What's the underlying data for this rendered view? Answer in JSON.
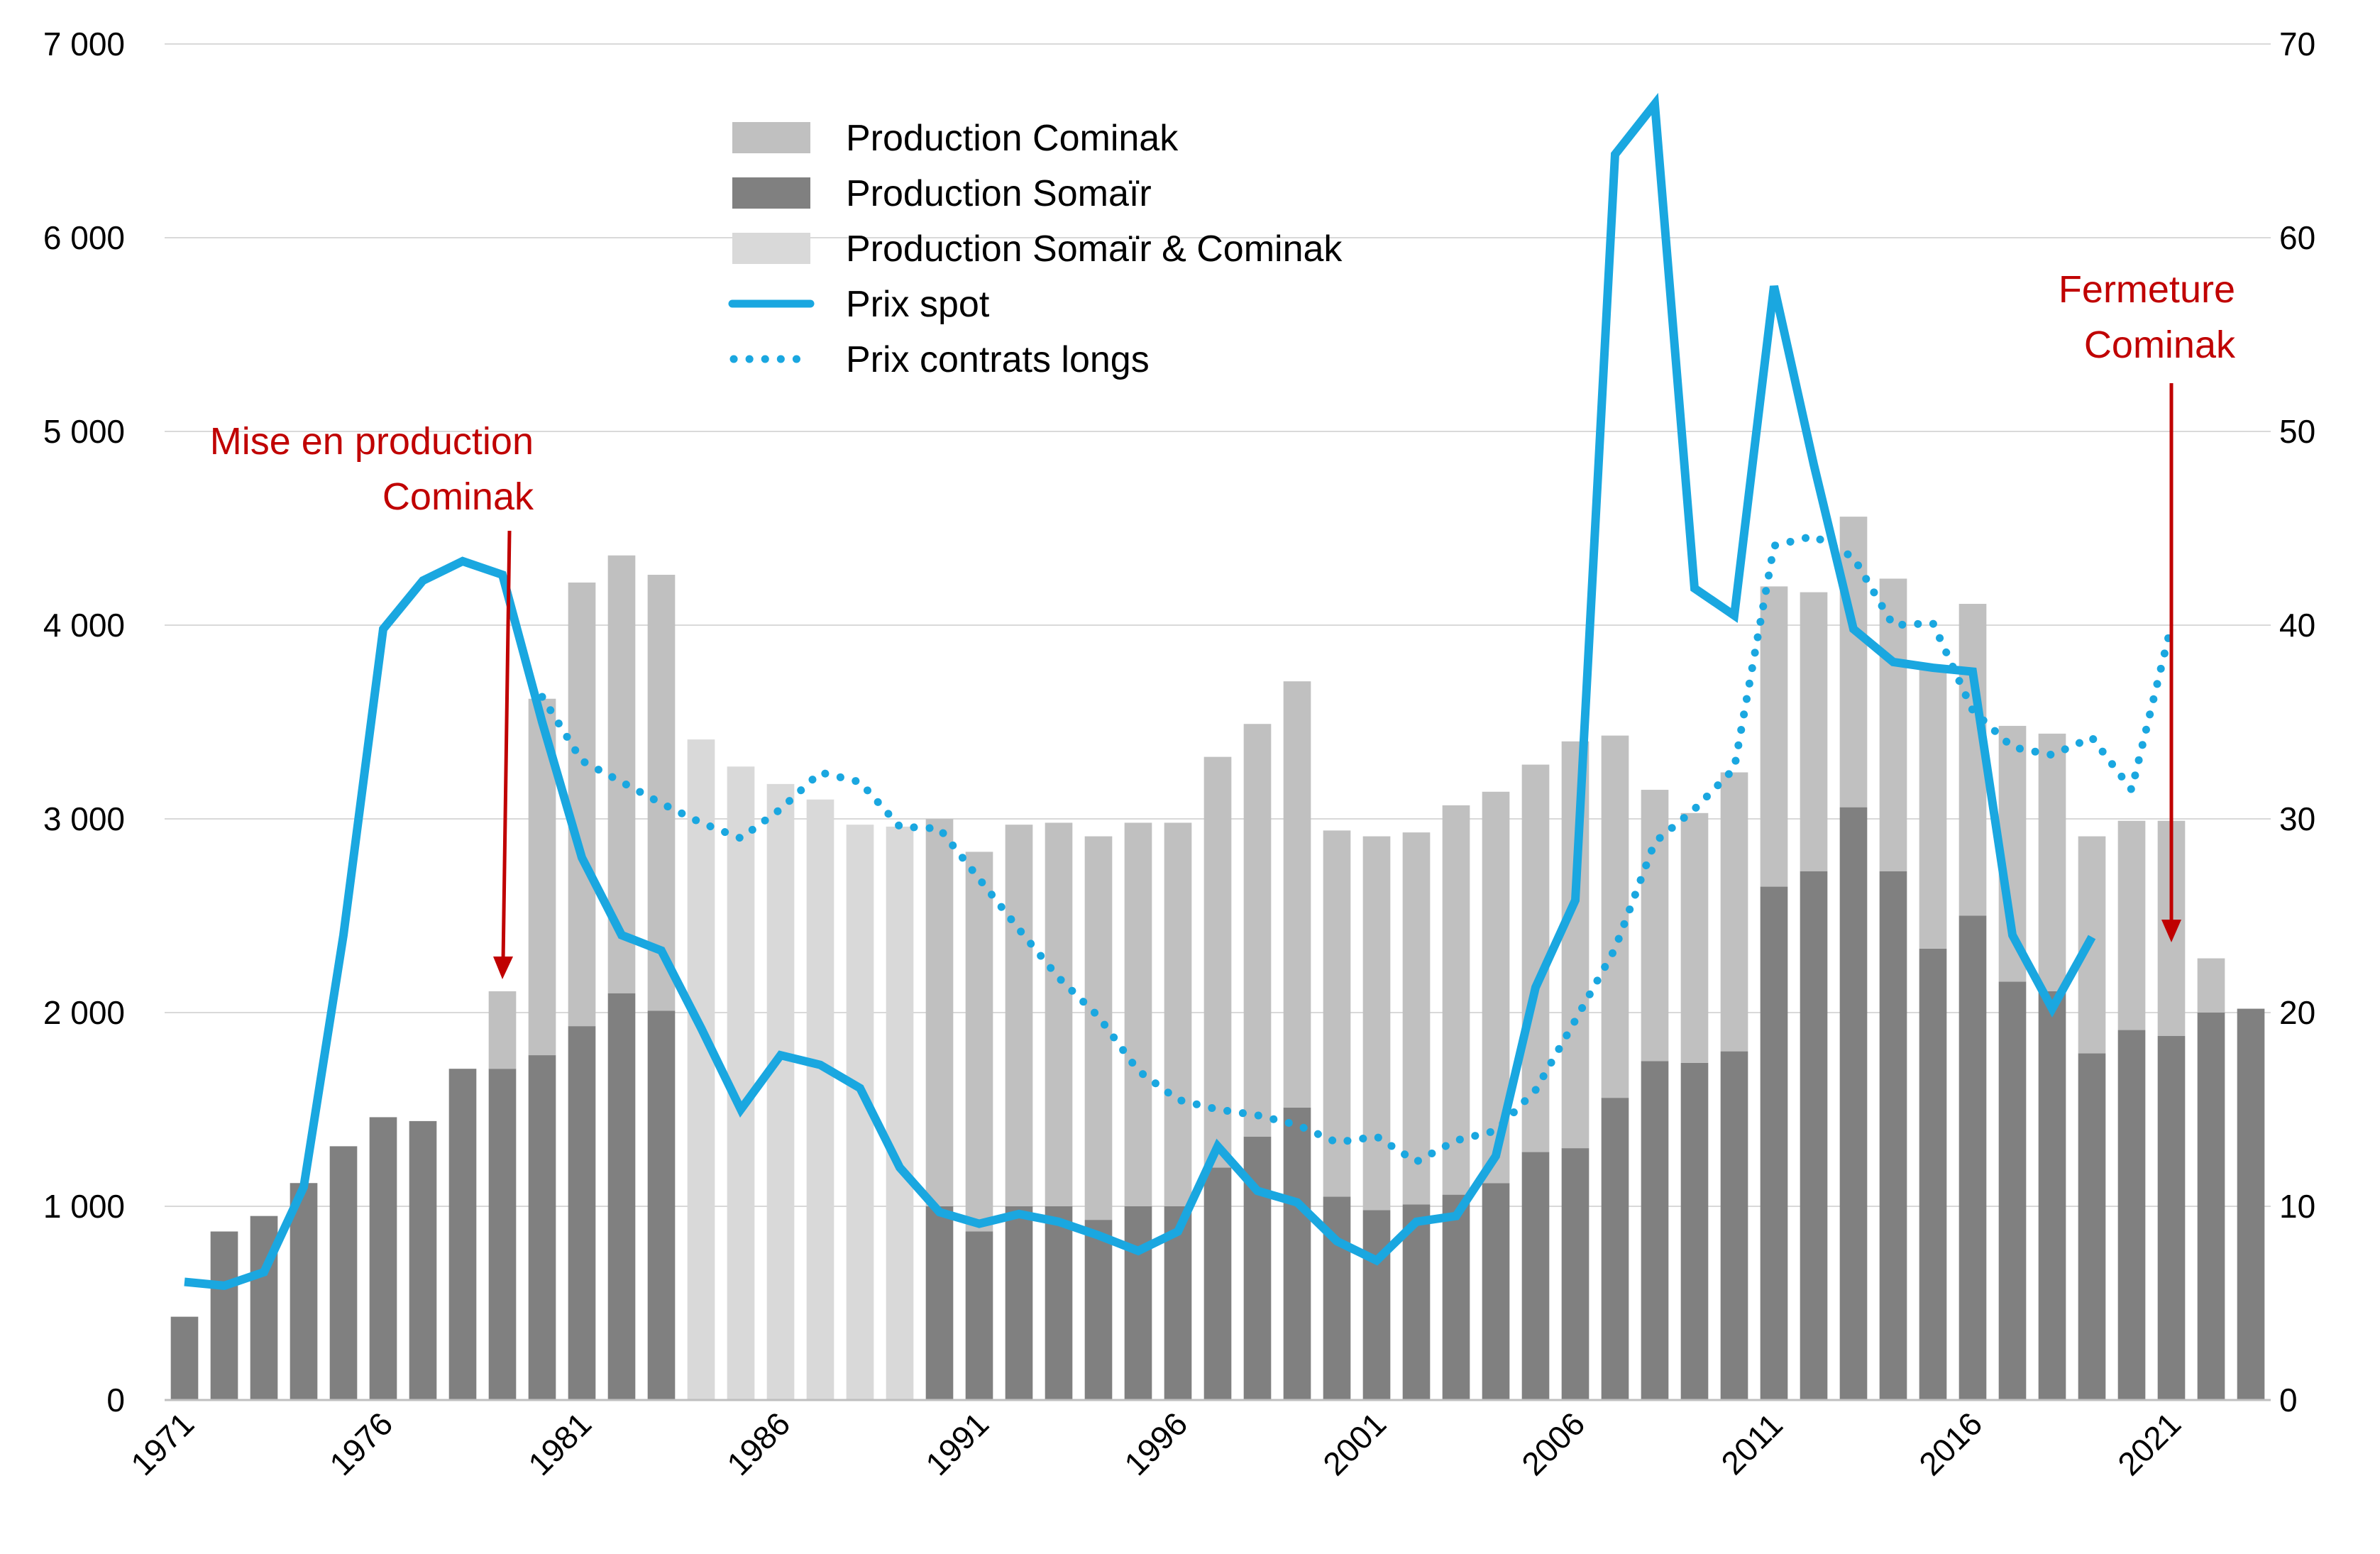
{
  "chart_data": {
    "type": "bar",
    "title": "",
    "xlabel": "",
    "ylabel": "",
    "ylabel_right": "",
    "categories": [
      "1971",
      "1972",
      "1973",
      "1974",
      "1975",
      "1976",
      "1977",
      "1978",
      "1979",
      "1980",
      "1981",
      "1982",
      "1983",
      "1984",
      "1985",
      "1986",
      "1987",
      "1988",
      "1989",
      "1990",
      "1991",
      "1992",
      "1993",
      "1994",
      "1995",
      "1996",
      "1997",
      "1998",
      "1999",
      "2000",
      "2001",
      "2002",
      "2003",
      "2004",
      "2005",
      "2006",
      "2007",
      "2008",
      "2009",
      "2010",
      "2011",
      "2012",
      "2013",
      "2014",
      "2015",
      "2016",
      "2017",
      "2018",
      "2019",
      "2020",
      "2021",
      "2022",
      "2023"
    ],
    "x_tick_labels": [
      "1971",
      "1976",
      "1981",
      "1986",
      "1991",
      "1996",
      "2001",
      "2006",
      "2011",
      "2016",
      "2021"
    ],
    "ylim": [
      0,
      7000
    ],
    "y_ticks": [
      "0",
      "1 000",
      "2 000",
      "3 000",
      "4 000",
      "5 000",
      "6 000",
      "7 000"
    ],
    "ylim_right": [
      0,
      70
    ],
    "y_ticks_right": [
      "0",
      "10",
      "20",
      "30",
      "40",
      "50",
      "60",
      "70"
    ],
    "grid": "horizontal",
    "legend_position": "top-center",
    "series": [
      {
        "name": "Production Cominak",
        "kind": "bar-stacked",
        "color": "#c0c0c0",
        "values": [
          null,
          null,
          null,
          null,
          null,
          null,
          null,
          null,
          400,
          1840,
          2290,
          2260,
          2250,
          null,
          null,
          null,
          null,
          null,
          null,
          2000,
          1960,
          1970,
          1980,
          1980,
          1980,
          1980,
          2120,
          2130,
          2200,
          1890,
          1930,
          1920,
          2010,
          2020,
          2000,
          2100,
          1870,
          1400,
          1290,
          1440,
          1550,
          1440,
          1500,
          1510,
          1460,
          1610,
          1320,
          1330,
          1120,
          1080,
          1110,
          280,
          null
        ]
      },
      {
        "name": "Production Somaïr",
        "kind": "bar",
        "color": "#808080",
        "values": [
          430,
          870,
          950,
          1120,
          1310,
          1460,
          1440,
          1710,
          1710,
          1780,
          1930,
          2100,
          2010,
          null,
          null,
          null,
          null,
          null,
          null,
          1000,
          870,
          1000,
          1000,
          930,
          1000,
          1000,
          1200,
          1360,
          1510,
          1050,
          980,
          1010,
          1060,
          1120,
          1280,
          1300,
          1560,
          1750,
          1740,
          1800,
          2650,
          2730,
          3060,
          2730,
          2330,
          2500,
          2160,
          2110,
          1790,
          1910,
          1880,
          2000,
          2020
        ]
      },
      {
        "name": "Production Somaïr & Cominak",
        "kind": "bar",
        "color": "#d9d9d9",
        "values": [
          null,
          null,
          null,
          null,
          null,
          null,
          null,
          null,
          null,
          null,
          null,
          null,
          null,
          3410,
          3270,
          3180,
          3100,
          2970,
          2960,
          null,
          null,
          null,
          null,
          null,
          null,
          null,
          null,
          null,
          null,
          null,
          null,
          null,
          null,
          null,
          null,
          null,
          null,
          null,
          null,
          null,
          null,
          null,
          null,
          null,
          null,
          null,
          null,
          null,
          null,
          null,
          null,
          null,
          null
        ]
      },
      {
        "name": "Prix spot",
        "kind": "line",
        "axis": "right",
        "color": "#1aa7e0",
        "values": [
          6.1,
          5.9,
          6.6,
          11,
          24,
          39.8,
          42.3,
          43.3,
          42.6,
          35,
          28,
          24,
          23.2,
          19.2,
          15,
          17.8,
          17.3,
          16.1,
          12,
          9.7,
          9.1,
          9.6,
          9.2,
          8.5,
          7.7,
          8.7,
          13.1,
          10.8,
          10.2,
          8.2,
          7.2,
          9.2,
          9.5,
          12.6,
          21.3,
          25.8,
          64.3,
          66.9,
          41.9,
          40.5,
          57.5,
          48.3,
          39.8,
          38.1,
          37.8,
          37.6,
          24,
          20.2,
          23.9,
          null,
          null,
          null,
          null
        ]
      },
      {
        "name": "Prix contrats longs",
        "kind": "line-dotted",
        "axis": "right",
        "color": "#1aa7e0",
        "values": [
          null,
          null,
          null,
          null,
          null,
          null,
          null,
          null,
          null,
          36.3,
          33,
          31.9,
          30.8,
          29.8,
          29,
          30.5,
          32.4,
          31.9,
          29.6,
          29.5,
          26.9,
          24.3,
          21.8,
          19.8,
          17,
          15.5,
          15,
          14.7,
          14.2,
          13.3,
          13.6,
          12.3,
          13.4,
          13.9,
          16,
          19.6,
          23.3,
          28.8,
          30.5,
          32.6,
          44.1,
          44.6,
          43.5,
          40,
          40.1,
          35.6,
          33.7,
          33.3,
          34.2,
          31.5,
          40,
          null,
          null
        ]
      }
    ],
    "annotations": [
      {
        "lines": [
          "Mise en production",
          "Cominak"
        ],
        "year": "1979",
        "color": "#c00000"
      },
      {
        "lines": [
          "Fermeture",
          "Cominak"
        ],
        "year": "2021",
        "color": "#c00000"
      }
    ]
  }
}
